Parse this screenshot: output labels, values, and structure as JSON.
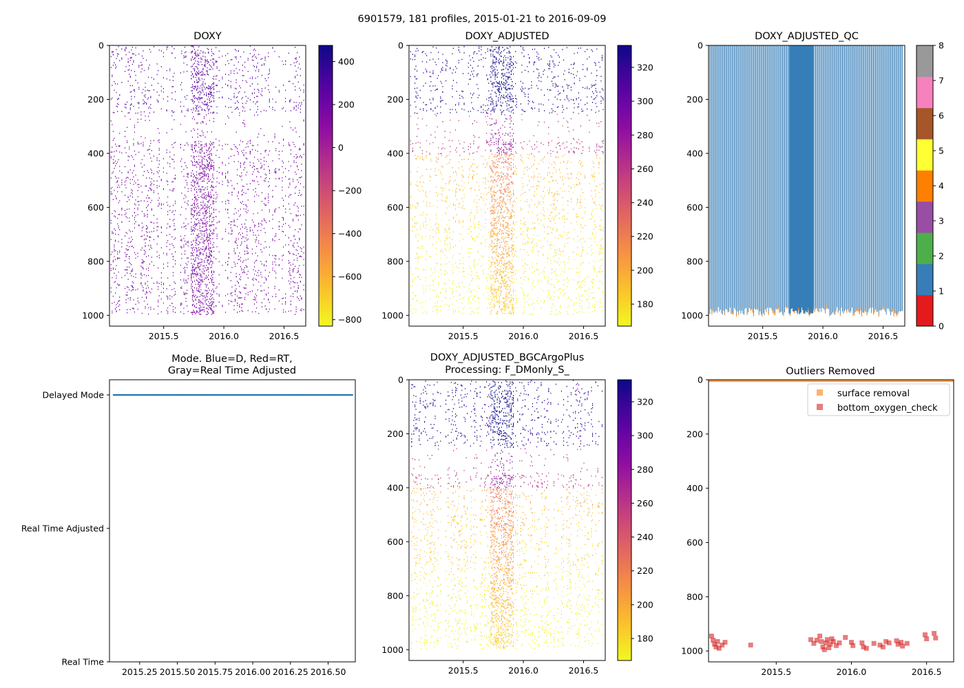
{
  "suptitle": "6901579, 181 profiles, 2015-01-21 to 2016-09-09",
  "colors": {
    "mode_dot": "#1f77b4",
    "qc_fill": "#377eb8",
    "qc_edge": "#ff7f00",
    "surface_marker": "#ff7f0e",
    "bottom_marker": "#d62728"
  },
  "chart_data": [
    {
      "id": "doxy",
      "type": "heatmap",
      "title": "DOXY",
      "xlim": [
        2015.05,
        2016.68
      ],
      "ylim": [
        1040,
        0
      ],
      "xticks": [
        2015.5,
        2016.0,
        2016.5
      ],
      "xtick_labels": [
        "2015.5",
        "2016.0",
        "2016.5"
      ],
      "yticks": [
        0,
        200,
        400,
        600,
        800,
        1000
      ],
      "ytick_labels": [
        "0",
        "200",
        "400",
        "600",
        "800",
        "1000"
      ],
      "colormap": "plasma_r",
      "colorbar_range": [
        -830,
        475
      ],
      "colorbar_ticks": [
        400,
        200,
        0,
        -200,
        -400,
        -600,
        -800
      ],
      "colorbar_tick_labels": [
        "400",
        "200",
        "0",
        "−200",
        "−400",
        "−600",
        "−800"
      ]
    },
    {
      "id": "doxy_adj",
      "type": "heatmap",
      "title": "DOXY_ADJUSTED",
      "xlim": [
        2015.05,
        2016.68
      ],
      "ylim": [
        1040,
        0
      ],
      "xticks": [
        2015.5,
        2016.0,
        2016.5
      ],
      "xtick_labels": [
        "2015.5",
        "2016.0",
        "2016.5"
      ],
      "yticks": [
        0,
        200,
        400,
        600,
        800,
        1000
      ],
      "ytick_labels": [
        "0",
        "200",
        "400",
        "600",
        "800",
        "1000"
      ],
      "colormap": "plasma_r",
      "colorbar_range": [
        167,
        333
      ],
      "colorbar_ticks": [
        320,
        300,
        280,
        260,
        240,
        220,
        200,
        180
      ],
      "colorbar_tick_labels": [
        "320",
        "300",
        "280",
        "260",
        "240",
        "220",
        "200",
        "180"
      ]
    },
    {
      "id": "qc",
      "type": "heatmap",
      "title": "DOXY_ADJUSTED_QC",
      "xlim": [
        2015.05,
        2016.68
      ],
      "ylim": [
        1040,
        0
      ],
      "xticks": [
        2015.5,
        2016.0,
        2016.5
      ],
      "xtick_labels": [
        "2015.5",
        "2016.0",
        "2016.5"
      ],
      "yticks": [
        0,
        200,
        400,
        600,
        800,
        1000
      ],
      "ytick_labels": [
        "0",
        "200",
        "400",
        "600",
        "800",
        "1000"
      ],
      "colorbar_range": [
        0,
        8
      ],
      "colorbar_ticks": [
        8,
        7,
        6,
        5,
        4,
        3,
        2,
        1,
        0
      ],
      "colorbar_tick_labels": [
        "8",
        "7",
        "6",
        "5",
        "4",
        "3",
        "2",
        "1",
        "0"
      ],
      "qc_colors": [
        "#e41a1c",
        "#377eb8",
        "#4daf4a",
        "#984ea3",
        "#ff7f00",
        "#ffff33",
        "#a65628",
        "#f781bf",
        "#999999"
      ]
    },
    {
      "id": "mode",
      "type": "scatter",
      "title_lines": [
        "Mode. Blue=D, Red=RT,",
        "Gray=Real Time Adjusted"
      ],
      "xlim": [
        2015.05,
        2016.68
      ],
      "ylim": [
        0,
        2
      ],
      "xticks": [
        2015.25,
        2015.5,
        2015.75,
        2016.0,
        2016.25,
        2016.5
      ],
      "xtick_labels": [
        "2015.25",
        "2015.50",
        "2015.75",
        "2016.00",
        "2016.25",
        "2016.50"
      ],
      "yticks": [
        2,
        1,
        0
      ],
      "ytick_labels": [
        "Delayed Mode",
        "Real Time Adjusted",
        "Real Time"
      ],
      "mode_value": 2
    },
    {
      "id": "bgc",
      "type": "heatmap",
      "title_lines": [
        "DOXY_ADJUSTED_BGCArgoPlus",
        "Processing: F_DMonly_S_"
      ],
      "xlim": [
        2015.05,
        2016.68
      ],
      "ylim": [
        1040,
        0
      ],
      "xticks": [
        2015.5,
        2016.0,
        2016.5
      ],
      "xtick_labels": [
        "2015.5",
        "2016.0",
        "2016.5"
      ],
      "yticks": [
        0,
        200,
        400,
        600,
        800,
        1000
      ],
      "ytick_labels": [
        "0",
        "200",
        "400",
        "600",
        "800",
        "1000"
      ],
      "colormap": "plasma_r",
      "colorbar_range": [
        167,
        333
      ],
      "colorbar_ticks": [
        320,
        300,
        280,
        260,
        240,
        220,
        200,
        180
      ],
      "colorbar_tick_labels": [
        "320",
        "300",
        "280",
        "260",
        "240",
        "220",
        "200",
        "180"
      ]
    },
    {
      "id": "outliers",
      "type": "scatter",
      "title": "Outliers Removed",
      "xlim": [
        2015.05,
        2016.68
      ],
      "ylim": [
        1040,
        0
      ],
      "xticks": [
        2015.5,
        2016.0,
        2016.5
      ],
      "xtick_labels": [
        "2015.5",
        "2016.0",
        "2016.5"
      ],
      "yticks": [
        0,
        200,
        400,
        600,
        800,
        1000
      ],
      "ytick_labels": [
        "0",
        "200",
        "400",
        "600",
        "800",
        "1000"
      ],
      "legend": [
        "surface removal",
        "bottom_oxygen_check"
      ],
      "legend_position": "upper-right",
      "series": [
        {
          "name": "surface removal",
          "depth_range": [
            0,
            8
          ],
          "x_range": [
            2015.05,
            2016.68
          ]
        },
        {
          "name": "bottom_oxygen_check",
          "points": [
            [
              2015.07,
              945
            ],
            [
              2015.08,
              960
            ],
            [
              2015.09,
              975
            ],
            [
              2015.1,
              985
            ],
            [
              2015.11,
              965
            ],
            [
              2015.12,
              990
            ],
            [
              2015.14,
              978
            ],
            [
              2015.16,
              968
            ],
            [
              2015.33,
              978
            ],
            [
              2015.73,
              958
            ],
            [
              2015.75,
              972
            ],
            [
              2015.77,
              960
            ],
            [
              2015.79,
              945
            ],
            [
              2015.8,
              965
            ],
            [
              2015.81,
              985
            ],
            [
              2015.82,
              995
            ],
            [
              2015.83,
              970
            ],
            [
              2015.84,
              958
            ],
            [
              2015.85,
              988
            ],
            [
              2015.86,
              975
            ],
            [
              2015.87,
              955
            ],
            [
              2015.88,
              965
            ],
            [
              2015.9,
              980
            ],
            [
              2015.92,
              970
            ],
            [
              2015.96,
              950
            ],
            [
              2016.0,
              968
            ],
            [
              2016.01,
              980
            ],
            [
              2016.07,
              970
            ],
            [
              2016.08,
              985
            ],
            [
              2016.1,
              990
            ],
            [
              2016.15,
              972
            ],
            [
              2016.19,
              978
            ],
            [
              2016.21,
              985
            ],
            [
              2016.23,
              965
            ],
            [
              2016.25,
              970
            ],
            [
              2016.3,
              962
            ],
            [
              2016.31,
              975
            ],
            [
              2016.33,
              968
            ],
            [
              2016.34,
              982
            ],
            [
              2016.37,
              972
            ],
            [
              2016.49,
              940
            ],
            [
              2016.5,
              955
            ],
            [
              2016.55,
              935
            ],
            [
              2016.56,
              952
            ]
          ]
        }
      ]
    }
  ]
}
